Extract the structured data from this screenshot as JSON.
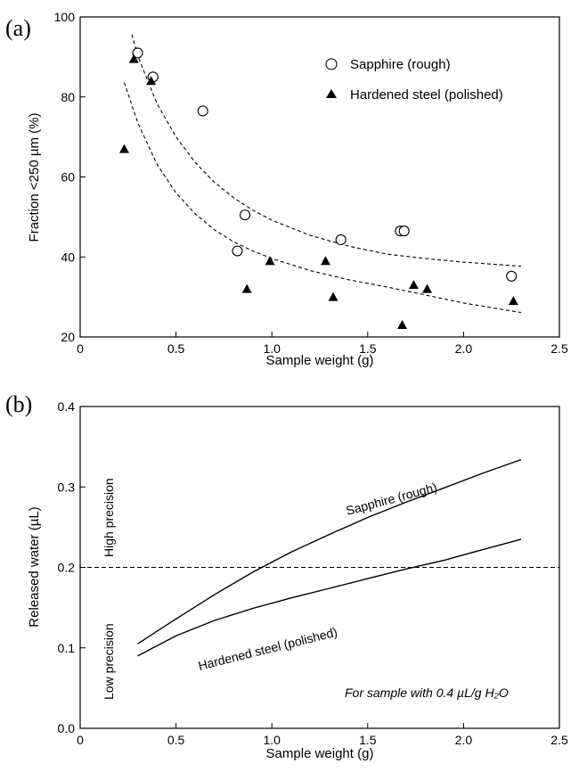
{
  "chart_data": [
    {
      "panel": "(a)",
      "type": "scatter",
      "xlabel": "Sample weight (g)",
      "ylabel": "Fraction <250 µm (%)",
      "xlim": [
        0,
        2.5
      ],
      "ylim": [
        20,
        100
      ],
      "xticks": [
        0,
        0.5,
        1.0,
        1.5,
        2.0,
        2.5
      ],
      "xtick_labels": [
        "0",
        "0.5",
        "1.0",
        "1.5",
        "2.0",
        "2.5"
      ],
      "yticks": [
        20,
        40,
        60,
        80,
        100
      ],
      "ytick_labels": [
        "20",
        "40",
        "60",
        "80",
        "100"
      ],
      "legend_position": "top-right",
      "series": [
        {
          "name": "Sapphire (rough)",
          "marker": "open-circle",
          "points": [
            [
              0.3,
              91
            ],
            [
              0.38,
              85
            ],
            [
              0.64,
              76.5
            ],
            [
              0.82,
              41.5
            ],
            [
              0.86,
              50.5
            ],
            [
              1.36,
              44.3
            ],
            [
              1.67,
              46.5
            ],
            [
              1.69,
              46.5
            ],
            [
              2.25,
              35.2
            ]
          ]
        },
        {
          "name": "Hardened steel (polished)",
          "marker": "filled-triangle",
          "points": [
            [
              0.23,
              67
            ],
            [
              0.28,
              89.5
            ],
            [
              0.37,
              84
            ],
            [
              0.87,
              32
            ],
            [
              0.99,
              39
            ],
            [
              1.28,
              39
            ],
            [
              1.32,
              30
            ],
            [
              1.68,
              23
            ],
            [
              1.74,
              33
            ],
            [
              1.81,
              32
            ],
            [
              2.26,
              29
            ]
          ]
        }
      ],
      "fits": [
        {
          "for": "Sapphire (rough)",
          "style": "dashed",
          "points": [
            [
              0.27,
              95.6
            ],
            [
              0.3,
              90.3
            ],
            [
              0.4,
              78.4
            ],
            [
              0.5,
              70
            ],
            [
              0.6,
              63.6
            ],
            [
              0.7,
              58.7
            ],
            [
              0.8,
              54.8
            ],
            [
              0.9,
              51.7
            ],
            [
              1.0,
              49.2
            ],
            [
              1.2,
              45.4
            ],
            [
              1.4,
              42.7
            ],
            [
              1.6,
              40.7
            ],
            [
              1.8,
              39.6
            ],
            [
              2.0,
              38.7
            ],
            [
              2.3,
              37.7
            ]
          ]
        },
        {
          "for": "Hardened steel (polished)",
          "style": "dashed",
          "points": [
            [
              0.23,
              83.6
            ],
            [
              0.3,
              73.6
            ],
            [
              0.4,
              63.2
            ],
            [
              0.5,
              56
            ],
            [
              0.6,
              50.8
            ],
            [
              0.7,
              46.8
            ],
            [
              0.8,
              43.8
            ],
            [
              0.9,
              41.5
            ],
            [
              1.0,
              39.6
            ],
            [
              1.2,
              36.6
            ],
            [
              1.4,
              34.3
            ],
            [
              1.6,
              32.5
            ],
            [
              1.8,
              30.5
            ],
            [
              2.0,
              28.5
            ],
            [
              2.3,
              26.1
            ]
          ]
        }
      ]
    },
    {
      "panel": "(b)",
      "type": "line",
      "xlabel": "Sample weight (g)",
      "ylabel": "Released water (µL)",
      "xlim": [
        0,
        2.5
      ],
      "ylim": [
        0,
        0.4
      ],
      "xticks": [
        0,
        0.5,
        1.0,
        1.5,
        2.0,
        2.5
      ],
      "xtick_labels": [
        "0",
        "0.5",
        "1.0",
        "1.5",
        "2.0",
        "2.5"
      ],
      "yticks": [
        0,
        0.1,
        0.2,
        0.3,
        0.4
      ],
      "ytick_labels": [
        "0.0",
        "0.1",
        "0.2",
        "0.3",
        "0.4"
      ],
      "series": [
        {
          "name": "Sapphire (rough)",
          "x": [
            0.3,
            0.5,
            0.7,
            0.9,
            1.1,
            1.3,
            1.5,
            1.7,
            1.9,
            2.1,
            2.3
          ],
          "y": [
            0.105,
            0.136,
            0.166,
            0.194,
            0.219,
            0.241,
            0.262,
            0.281,
            0.299,
            0.317,
            0.334
          ]
        },
        {
          "name": "Hardened steel (polished)",
          "x": [
            0.3,
            0.5,
            0.7,
            0.9,
            1.1,
            1.3,
            1.5,
            1.7,
            1.9,
            2.1,
            2.3
          ],
          "y": [
            0.09,
            0.115,
            0.134,
            0.149,
            0.162,
            0.174,
            0.186,
            0.198,
            0.209,
            0.222,
            0.235
          ]
        }
      ],
      "reference_line": {
        "y": 0.2,
        "style": "dashed"
      },
      "regions": {
        "above": "High precision",
        "below": "Low precision"
      },
      "annotation": "For sample with 0.4 µL/g H₂O"
    }
  ],
  "labels": {
    "panel_a": "(a)",
    "panel_b": "(b)",
    "a_xlabel": "Sample weight (g)",
    "a_ylabel": "Fraction <250 µm (%)",
    "b_xlabel": "Sample weight (g)",
    "b_ylabel": "Released water (µL)",
    "legend_sapphire": "Sapphire (rough)",
    "legend_steel": "Hardened steel (polished)",
    "curve_sapphire": "Sapphire (rough)",
    "curve_steel": "Hardened steel (polished)",
    "high_precision": "High precision",
    "low_precision": "Low precision",
    "note": "For sample with 0.4 µL/g H₂O"
  }
}
